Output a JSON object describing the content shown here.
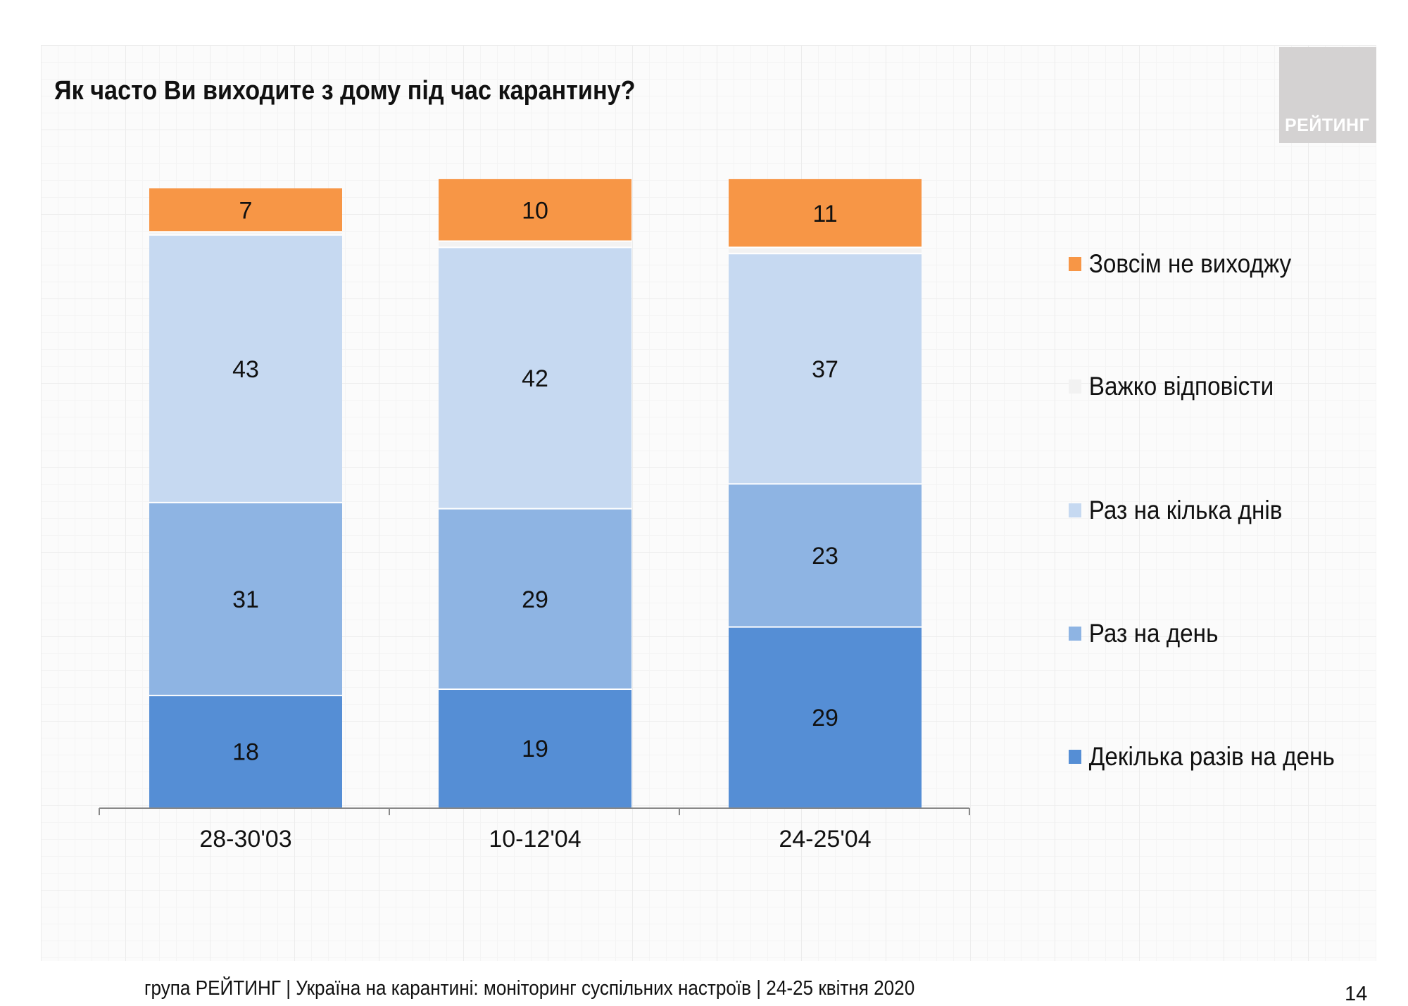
{
  "title": "Як часто Ви виходите з дому під час карантину?",
  "logo_text": "РЕЙТИНГ",
  "footer": "група РЕЙТИНГ | Україна на карантині: моніторинг суспільних настроїв  | 24-25 квітня  2020",
  "page_number": "14",
  "chart_data": {
    "type": "bar",
    "stacked": true,
    "orientation": "vertical",
    "categories": [
      "28-30'03",
      "10-12'04",
      "24-25'04"
    ],
    "series": [
      {
        "name": "Декілька разів на день",
        "color": "#558ed5",
        "values": [
          18,
          19,
          29
        ],
        "labeled": true
      },
      {
        "name": "Раз на день",
        "color": "#8eb4e3",
        "values": [
          31,
          29,
          23
        ],
        "labeled": true
      },
      {
        "name": "Раз на кілька днів",
        "color": "#c6d9f1",
        "values": [
          43,
          42,
          37
        ],
        "labeled": true
      },
      {
        "name": "Важко відповісти",
        "color": "#f2f2f2",
        "values": [
          0.5,
          1,
          1
        ],
        "labeled": false
      },
      {
        "name": "Зовсім не виходжу",
        "color": "#f79646",
        "values": [
          7,
          10,
          11
        ],
        "labeled": true
      }
    ],
    "ylim": [
      0,
      100
    ],
    "grid": false,
    "legend_placement": "right",
    "legend_order": [
      "Зовсім не виходжу",
      "Важко відповісти",
      "Раз на кілька днів",
      "Раз на день",
      "Декілька разів на день"
    ]
  }
}
